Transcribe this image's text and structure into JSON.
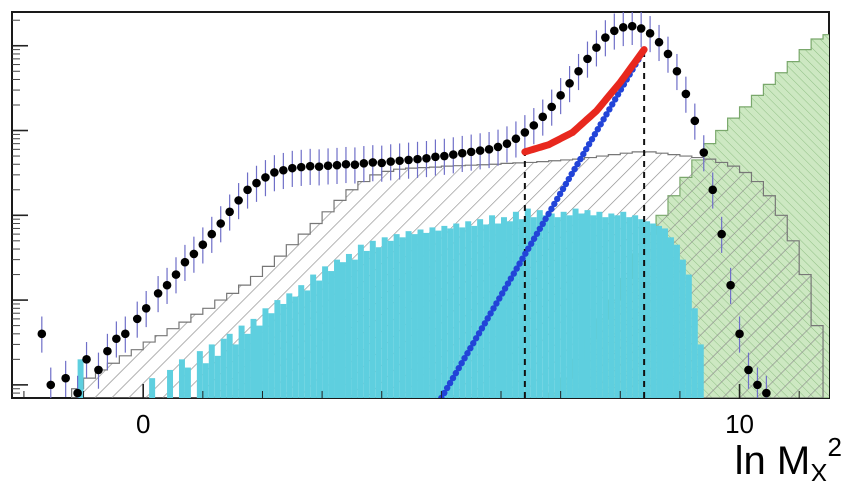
{
  "chart_data": {
    "type": "histogram",
    "xlabel": {
      "main": "ln M",
      "sub": "X",
      "sup": "2"
    },
    "ylabel": "",
    "x_ticks": [
      {
        "value": 0,
        "label": "0"
      },
      {
        "value": 10,
        "label": "10"
      }
    ],
    "xlim": [
      -2.2,
      11.5
    ],
    "yscale": "log",
    "ylim": [
      0.7,
      25000
    ],
    "y_major_ticks": [
      1,
      10,
      100,
      1000,
      10000
    ],
    "grid": false,
    "legend": "none",
    "colors": {
      "cyan_hist": "#5ecfdf",
      "green_hist": "#cde8c2",
      "green_edge": "#7aa86c",
      "hatch": "#8c8c8c",
      "data_points": "#000000",
      "error_bars": "#6f6fc8",
      "red_fit": "#e8281e",
      "blue_line": "#2244d8"
    },
    "series": [
      {
        "kind": "histogram",
        "style": "cyan-filled",
        "bin_width": 0.1,
        "x_start": -1.6,
        "values": [
          0,
          0,
          0,
          0,
          0,
          2,
          0,
          0,
          0,
          0,
          0,
          0,
          0,
          0,
          0,
          0,
          0,
          1.2,
          0,
          0,
          1.5,
          0,
          2,
          1.6,
          0,
          2.5,
          1.8,
          3,
          2.2,
          3.5,
          4,
          3,
          5,
          4,
          6,
          5,
          8,
          7,
          10,
          9,
          12,
          11,
          15,
          13,
          20,
          17,
          25,
          22,
          30,
          28,
          35,
          30,
          45,
          38,
          50,
          42,
          55,
          50,
          60,
          55,
          65,
          60,
          68,
          62,
          72,
          66,
          75,
          70,
          80,
          72,
          85,
          75,
          90,
          78,
          100,
          80,
          95,
          85,
          110,
          90,
          120,
          95,
          115,
          100,
          105,
          95,
          110,
          100,
          120,
          105,
          115,
          100,
          110,
          95,
          105,
          100,
          110,
          95,
          100,
          90,
          85,
          80,
          75,
          70,
          55,
          45,
          30,
          20,
          8,
          3,
          0,
          0,
          0,
          0,
          0,
          0,
          0,
          0,
          0,
          0,
          0,
          0,
          0,
          0,
          0,
          0,
          0,
          0,
          0,
          0
        ]
      },
      {
        "kind": "histogram",
        "style": "hatched-outline",
        "bin_width": 0.2,
        "x_start": -1.2,
        "values": [
          0.9,
          1.2,
          1.5,
          1.8,
          2.2,
          2.6,
          3.2,
          3.8,
          4.6,
          5.5,
          6.8,
          8,
          10,
          12,
          15,
          19,
          25,
          33,
          45,
          60,
          80,
          110,
          150,
          200,
          250,
          300,
          330,
          350,
          360,
          365,
          370,
          380,
          385,
          390,
          395,
          400,
          410,
          415,
          420,
          430,
          440,
          450,
          460,
          480,
          500,
          520,
          540,
          560,
          560,
          540,
          520,
          500,
          480,
          460,
          420,
          380,
          320,
          250,
          170,
          100,
          50,
          20,
          5
        ]
      },
      {
        "kind": "histogram",
        "style": "green-hatched",
        "bin_width": 0.2,
        "x_start": 6.8,
        "values": [
          0.8,
          1.2,
          2,
          3.5,
          6,
          10,
          18,
          35,
          60,
          100,
          170,
          280,
          450,
          700,
          1000,
          1400,
          1900,
          2600,
          3500,
          4800,
          6500,
          9000,
          12000,
          13500,
          13500,
          12000,
          9500,
          6500,
          3500,
          1500,
          400,
          50
        ]
      },
      {
        "kind": "points",
        "name": "data",
        "x": [
          -1.7,
          -1.55,
          -1.3,
          -1.1,
          -0.95,
          -0.75,
          -0.6,
          -0.45,
          -0.3,
          -0.1,
          0.05,
          0.25,
          0.4,
          0.55,
          0.7,
          0.85,
          1.0,
          1.15,
          1.3,
          1.45,
          1.6,
          1.75,
          1.9,
          2.05,
          2.2,
          2.35,
          2.5,
          2.65,
          2.8,
          2.95,
          3.1,
          3.25,
          3.4,
          3.55,
          3.7,
          3.85,
          4.0,
          4.15,
          4.3,
          4.45,
          4.6,
          4.75,
          4.9,
          5.05,
          5.2,
          5.35,
          5.5,
          5.65,
          5.8,
          5.95,
          6.1,
          6.25,
          6.4,
          6.55,
          6.7,
          6.85,
          7.0,
          7.15,
          7.3,
          7.45,
          7.6,
          7.75,
          7.9,
          8.05,
          8.2,
          8.35,
          8.5,
          8.65,
          8.8,
          8.95,
          9.1,
          9.25,
          9.4,
          9.55,
          9.7,
          9.85,
          10.0,
          10.15,
          10.3,
          10.45
        ],
        "y": [
          4,
          1,
          1.2,
          0.8,
          2,
          1.5,
          2.5,
          3.5,
          4,
          6,
          8,
          12,
          15,
          20,
          28,
          35,
          45,
          60,
          80,
          110,
          150,
          200,
          240,
          280,
          320,
          340,
          360,
          370,
          380,
          375,
          385,
          390,
          400,
          395,
          410,
          420,
          415,
          430,
          440,
          450,
          460,
          470,
          490,
          500,
          520,
          540,
          560,
          580,
          600,
          640,
          700,
          800,
          950,
          1150,
          1450,
          1900,
          2600,
          3600,
          5000,
          7000,
          9500,
          12500,
          15000,
          16500,
          17000,
          16000,
          14000,
          11000,
          8000,
          5000,
          2700,
          1300,
          550,
          200,
          60,
          15,
          4,
          1.5,
          1,
          0.8
        ]
      },
      {
        "kind": "line",
        "name": "red-fit",
        "x": [
          6.4,
          6.8,
          7.2,
          7.6,
          8.0,
          8.4
        ],
        "y": [
          560,
          680,
          950,
          1700,
          3700,
          9000
        ]
      },
      {
        "kind": "line",
        "name": "blue-line",
        "style": "dotted",
        "x": [
          5.0,
          8.4
        ],
        "y": [
          0.7,
          9000
        ]
      }
    ],
    "vertical_lines": [
      {
        "x": 6.4,
        "ymin": 0.7,
        "ymax": 560,
        "style": "dashed"
      },
      {
        "x": 8.4,
        "ymin": 0.7,
        "ymax": 9000,
        "style": "dashed"
      }
    ]
  }
}
